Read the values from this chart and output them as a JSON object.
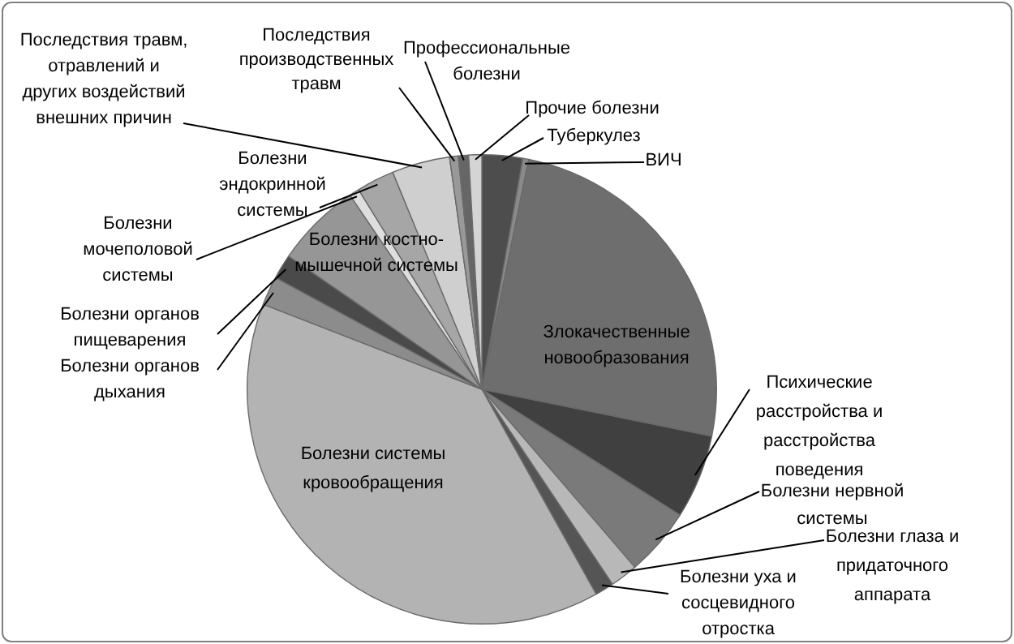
{
  "chart_data": {
    "type": "pie",
    "legend": false,
    "categories": [
      "Туберкулез",
      "ВИЧ",
      "Злокачественные новообразования",
      "Психические расстройства и расстройства поведения",
      "Болезни нервной системы",
      "Болезни глаза и придаточного аппарата",
      "Болезни уха и сосцевидного отростка",
      "Болезни системы кровообращения",
      "Болезни органов дыхания",
      "Болезни органов пищеварения",
      "Болезни костно-мышечной системы",
      "Болезни мочеполовой системы",
      "Болезни эндокринной системы",
      "Последствия травм, отравлений и других воздействий внешних причин",
      "Последствия производственных травм",
      "Профессиональные болезни",
      "Прочие болезни"
    ],
    "values": [
      2.8,
      0.4,
      25,
      5.8,
      4.7,
      1.9,
      1.3,
      39,
      2,
      1.7,
      5.9,
      0.7,
      2.6,
      4,
      0.6,
      0.7,
      0.9
    ],
    "colors": [
      "#4d4d4d",
      "#8a8a8a",
      "#6e6e6e",
      "#404040",
      "#7a7a7a",
      "#b8b8b8",
      "#555555",
      "#b3b3b3",
      "#8c8c8c",
      "#4a4a4a",
      "#969696",
      "#dedede",
      "#a6a6a6",
      "#cfcfcf",
      "#999999",
      "#666666",
      "#d4d4d4"
    ]
  }
}
